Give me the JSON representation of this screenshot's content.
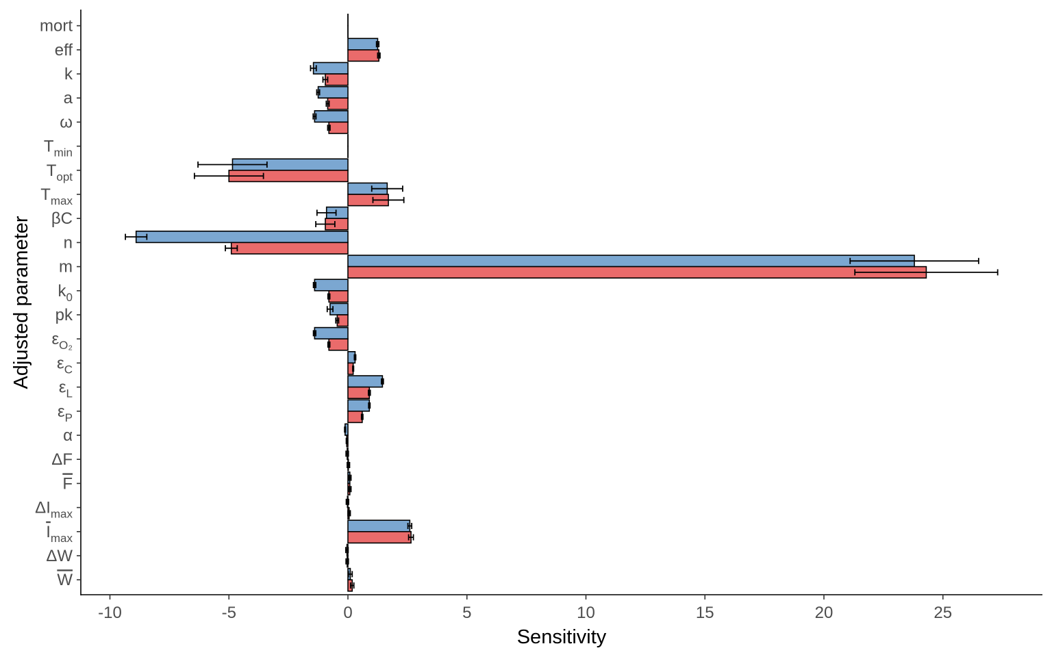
{
  "chart_data": {
    "type": "bar",
    "orientation": "horizontal",
    "xlabel": "Sensitivity",
    "ylabel": "Adjusted parameter",
    "xlim": [
      -11,
      29
    ],
    "xticks": [
      -10,
      -5,
      0,
      5,
      10,
      15,
      20,
      25
    ],
    "xtick_labels": [
      "-10",
      "-5",
      "0",
      "5",
      "10",
      "15",
      "20",
      "25"
    ],
    "grid": false,
    "legend": "none",
    "colors": {
      "series_a": "#7BA7D1",
      "series_b": "#EA6B6B"
    },
    "categories": [
      {
        "base": "mort",
        "sub": "",
        "overline": false
      },
      {
        "base": "eff",
        "sub": "",
        "overline": false
      },
      {
        "base": "k",
        "sub": "",
        "overline": false
      },
      {
        "base": "a",
        "sub": "",
        "overline": false
      },
      {
        "base": "ω",
        "sub": "",
        "overline": false
      },
      {
        "base": "T",
        "sub": "min",
        "overline": false
      },
      {
        "base": "T",
        "sub": "opt",
        "overline": false
      },
      {
        "base": "T",
        "sub": "max",
        "overline": false
      },
      {
        "base": "βC",
        "sub": "",
        "overline": false
      },
      {
        "base": "n",
        "sub": "",
        "overline": false
      },
      {
        "base": "m",
        "sub": "",
        "overline": false
      },
      {
        "base": "k",
        "sub": "0",
        "overline": false
      },
      {
        "base": "pk",
        "sub": "",
        "overline": false
      },
      {
        "base": "ε",
        "sub": "O₂",
        "overline": false
      },
      {
        "base": "ε",
        "sub": "C",
        "overline": false
      },
      {
        "base": "ε",
        "sub": "L",
        "overline": false
      },
      {
        "base": "ε",
        "sub": "P",
        "overline": false
      },
      {
        "base": "α",
        "sub": "",
        "overline": false
      },
      {
        "base": "ΔF",
        "sub": "",
        "overline": false
      },
      {
        "base": "F",
        "sub": "",
        "overline": true
      },
      {
        "base": "ΔI",
        "sub": "max",
        "overline": false
      },
      {
        "base": "I",
        "sub": "max",
        "overline": true
      },
      {
        "base": "ΔW",
        "sub": "",
        "overline": false
      },
      {
        "base": "W",
        "sub": "",
        "overline": true
      }
    ],
    "series": [
      {
        "values": [
          0,
          1.25,
          -1.45,
          -1.25,
          -1.4,
          0,
          -4.85,
          1.65,
          -0.9,
          -8.9,
          23.8,
          -1.4,
          -0.75,
          -1.4,
          0.3,
          1.45,
          0.9,
          -0.12,
          -0.03,
          0.08,
          -0.02,
          2.6,
          -0.04,
          0.1
        ],
        "error": [
          0,
          0.05,
          0.12,
          0.06,
          0.06,
          0,
          1.45,
          0.65,
          0.4,
          0.45,
          2.7,
          0.05,
          0.12,
          0.05,
          0.03,
          0.04,
          0.03,
          0.02,
          0.05,
          0.05,
          0.05,
          0.08,
          0.05,
          0.08
        ]
      },
      {
        "values": [
          0,
          1.3,
          -0.95,
          -0.85,
          -0.8,
          0,
          -5.0,
          1.7,
          -0.95,
          -4.9,
          24.3,
          -0.8,
          -0.45,
          -0.8,
          0.22,
          0.9,
          0.6,
          -0.05,
          0.02,
          0.08,
          0.05,
          2.65,
          -0.03,
          0.18
        ],
        "error": [
          0,
          0.05,
          0.1,
          0.06,
          0.05,
          0,
          1.45,
          0.65,
          0.4,
          0.25,
          3.0,
          0.04,
          0.06,
          0.04,
          0.02,
          0.04,
          0.03,
          0.02,
          0.05,
          0.05,
          0.05,
          0.1,
          0.05,
          0.07
        ]
      }
    ]
  }
}
